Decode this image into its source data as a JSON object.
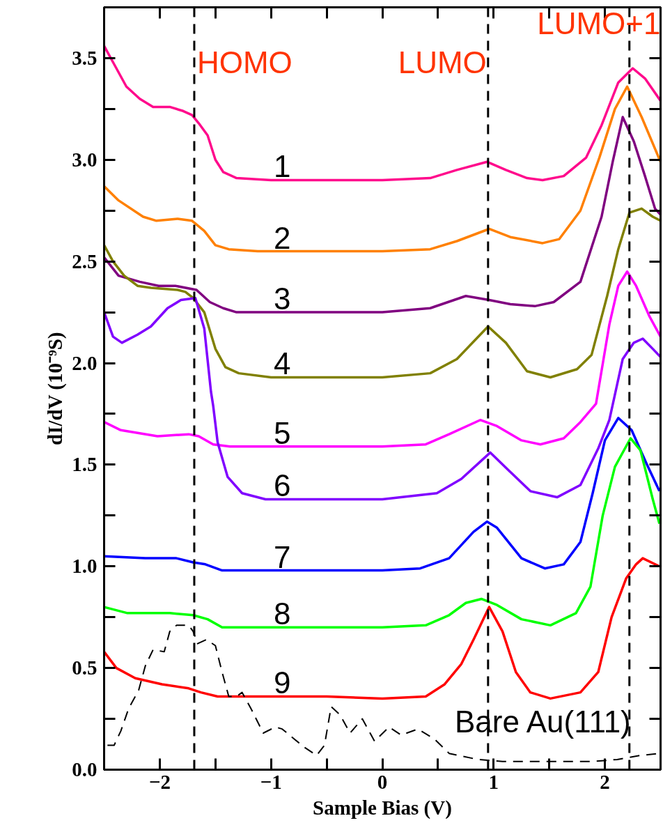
{
  "chart_data": {
    "type": "line",
    "xlabel": "Sample Bias (V)",
    "ylabel": "dI/dV (10⁻⁹S)",
    "xlim": [
      -2.5,
      2.5
    ],
    "ylim": [
      0,
      3.75
    ],
    "xticks": [
      -2,
      {
        "value": -1.5,
        "label": null
      },
      -1,
      {
        "value": -0.5,
        "label": null
      },
      0,
      {
        "value": 0.5,
        "label": null
      },
      1,
      {
        "value": 1.5,
        "label": null
      },
      2
    ],
    "yticks": [
      {
        "value": 0,
        "label": "0.0"
      },
      {
        "value": 0.25,
        "label": null
      },
      0.5,
      {
        "value": 0.75,
        "label": null
      },
      {
        "value": 1,
        "label": "1.0"
      },
      {
        "value": 1.25,
        "label": null
      },
      1.5,
      {
        "value": 1.75,
        "label": null
      },
      {
        "value": 2,
        "label": "2.0"
      },
      {
        "value": 2.25,
        "label": null
      },
      2.5,
      {
        "value": 2.75,
        "label": null
      },
      {
        "value": 3,
        "label": "3.0"
      },
      {
        "value": 3.25,
        "label": null
      },
      3.5
    ],
    "annotations": [
      {
        "text": "Bare Au(111)",
        "x": 2.11,
        "y": 0.05
      }
    ],
    "grid": false,
    "line_style": "solid",
    "ref_lines": [
      {
        "axis": "x",
        "value": -1.69,
        "label": "HOMO",
        "color": "#000000",
        "line_style": "dashed"
      },
      {
        "axis": "x",
        "value": 0.95,
        "label": "LUMO",
        "color": "#000000",
        "line_style": "dashed"
      },
      {
        "axis": "x",
        "value": 2.22,
        "label": "LUMO+1",
        "color": "#000000",
        "line_style": "dashed"
      }
    ],
    "series": [
      {
        "name": "1",
        "color": "#ff0a8c",
        "x": [
          -2.5,
          -2.42,
          -2.3,
          -2.18,
          -2.06,
          -1.91,
          -1.79,
          -1.71,
          -1.65,
          -1.57,
          -1.5,
          -1.43,
          -1.31,
          -1.0,
          -0.5,
          0.0,
          0.43,
          0.67,
          0.94,
          1.11,
          1.3,
          1.44,
          1.63,
          1.83,
          1.97,
          2.12,
          2.25,
          2.36,
          2.5
        ],
        "values": [
          3.56,
          3.48,
          3.36,
          3.3,
          3.26,
          3.26,
          3.24,
          3.22,
          3.18,
          3.12,
          3.0,
          2.94,
          2.91,
          2.9,
          2.9,
          2.9,
          2.91,
          2.95,
          2.99,
          2.95,
          2.91,
          2.9,
          2.92,
          3.01,
          3.17,
          3.38,
          3.45,
          3.4,
          3.29
        ]
      },
      {
        "name": "2",
        "color": "#ff8000",
        "x": [
          -2.5,
          -2.37,
          -2.15,
          -2.03,
          -1.84,
          -1.71,
          -1.6,
          -1.5,
          -1.38,
          -1.12,
          -0.5,
          0.0,
          0.43,
          0.67,
          0.96,
          1.15,
          1.44,
          1.59,
          1.78,
          1.95,
          2.09,
          2.2,
          2.33,
          2.5
        ],
        "values": [
          2.87,
          2.8,
          2.72,
          2.7,
          2.71,
          2.7,
          2.65,
          2.58,
          2.56,
          2.55,
          2.55,
          2.55,
          2.56,
          2.6,
          2.66,
          2.62,
          2.59,
          2.61,
          2.75,
          3.01,
          3.25,
          3.36,
          3.21,
          2.99
        ]
      },
      {
        "name": "3",
        "color": "#800080",
        "x": [
          -2.5,
          -2.37,
          -2.18,
          -2.01,
          -1.86,
          -1.67,
          -1.55,
          -1.43,
          -1.31,
          -0.5,
          0.0,
          0.43,
          0.75,
          0.96,
          1.15,
          1.37,
          1.54,
          1.78,
          1.97,
          2.07,
          2.16,
          2.26,
          2.36,
          2.45,
          2.5
        ],
        "values": [
          2.52,
          2.43,
          2.4,
          2.38,
          2.38,
          2.36,
          2.3,
          2.27,
          2.25,
          2.25,
          2.25,
          2.27,
          2.33,
          2.31,
          2.29,
          2.28,
          2.3,
          2.4,
          2.72,
          2.99,
          3.21,
          3.09,
          2.92,
          2.76,
          2.73
        ]
      },
      {
        "name": "4",
        "color": "#808000",
        "x": [
          -2.5,
          -2.42,
          -2.32,
          -2.2,
          -2.08,
          -1.84,
          -1.77,
          -1.7,
          -1.6,
          -1.5,
          -1.41,
          -1.29,
          -1.0,
          -0.5,
          0.0,
          0.43,
          0.67,
          0.95,
          1.11,
          1.3,
          1.51,
          1.75,
          1.88,
          2.02,
          2.12,
          2.22,
          2.33,
          2.43,
          2.5
        ],
        "values": [
          2.58,
          2.5,
          2.43,
          2.38,
          2.37,
          2.36,
          2.35,
          2.32,
          2.25,
          2.07,
          1.98,
          1.95,
          1.93,
          1.93,
          1.93,
          1.95,
          2.02,
          2.18,
          2.1,
          1.96,
          1.93,
          1.97,
          2.04,
          2.33,
          2.56,
          2.74,
          2.76,
          2.72,
          2.7
        ]
      },
      {
        "name": "5",
        "color": "#ff00ff",
        "x": [
          -2.5,
          -2.35,
          -2.02,
          -1.74,
          -1.65,
          -1.52,
          -1.37,
          -0.5,
          0.0,
          0.39,
          0.6,
          0.88,
          1.03,
          1.25,
          1.42,
          1.63,
          1.78,
          1.92,
          2.04,
          2.12,
          2.2,
          2.28,
          2.4,
          2.5
        ],
        "values": [
          1.71,
          1.67,
          1.64,
          1.65,
          1.64,
          1.6,
          1.59,
          1.59,
          1.59,
          1.6,
          1.65,
          1.72,
          1.69,
          1.62,
          1.6,
          1.63,
          1.71,
          1.8,
          2.19,
          2.38,
          2.45,
          2.38,
          2.23,
          2.13
        ]
      },
      {
        "name": "6",
        "color": "#8000ff",
        "x": [
          -2.5,
          -2.42,
          -2.34,
          -2.2,
          -2.08,
          -1.93,
          -1.81,
          -1.68,
          -1.6,
          -1.54,
          -1.52,
          -1.48,
          -1.39,
          -1.26,
          -1.05,
          -0.5,
          0.0,
          0.49,
          0.71,
          0.97,
          1.14,
          1.33,
          1.57,
          1.78,
          1.94,
          2.04,
          2.16,
          2.26,
          2.34,
          2.43,
          2.5
        ],
        "values": [
          2.25,
          2.13,
          2.1,
          2.14,
          2.18,
          2.27,
          2.31,
          2.32,
          2.17,
          1.86,
          1.79,
          1.61,
          1.44,
          1.36,
          1.33,
          1.33,
          1.33,
          1.36,
          1.43,
          1.56,
          1.47,
          1.37,
          1.34,
          1.4,
          1.58,
          1.72,
          2.02,
          2.1,
          2.12,
          2.07,
          2.03
        ]
      },
      {
        "name": "7",
        "color": "#0000ff",
        "x": [
          -2.5,
          -2.13,
          -1.85,
          -1.7,
          -1.59,
          -1.44,
          -0.5,
          0.0,
          0.34,
          0.6,
          0.82,
          0.94,
          1.03,
          1.25,
          1.46,
          1.63,
          1.78,
          1.89,
          2.0,
          2.12,
          2.24,
          2.37,
          2.49
        ],
        "values": [
          1.05,
          1.04,
          1.04,
          1.02,
          1.01,
          0.98,
          0.98,
          0.98,
          0.99,
          1.04,
          1.17,
          1.22,
          1.19,
          1.04,
          0.99,
          1.01,
          1.12,
          1.36,
          1.62,
          1.73,
          1.67,
          1.51,
          1.37
        ]
      },
      {
        "name": "8",
        "color": "#00ff00",
        "x": [
          -2.5,
          -2.29,
          -1.91,
          -1.7,
          -1.57,
          -1.44,
          -0.5,
          0.0,
          0.39,
          0.6,
          0.75,
          0.89,
          1.03,
          1.25,
          1.51,
          1.74,
          1.87,
          1.98,
          2.09,
          2.23,
          2.32,
          2.43,
          2.49
        ],
        "values": [
          0.8,
          0.77,
          0.77,
          0.76,
          0.74,
          0.7,
          0.7,
          0.7,
          0.71,
          0.76,
          0.82,
          0.84,
          0.81,
          0.74,
          0.71,
          0.77,
          0.9,
          1.25,
          1.49,
          1.63,
          1.57,
          1.33,
          1.21
        ]
      },
      {
        "name": "9",
        "color": "#ff0000",
        "x": [
          -2.5,
          -2.39,
          -2.22,
          -1.98,
          -1.74,
          -1.63,
          -1.48,
          -0.5,
          0.0,
          0.39,
          0.56,
          0.71,
          0.82,
          0.96,
          1.08,
          1.2,
          1.33,
          1.51,
          1.78,
          1.94,
          2.06,
          2.19,
          2.28,
          2.34,
          2.49
        ],
        "values": [
          0.58,
          0.5,
          0.45,
          0.42,
          0.4,
          0.38,
          0.36,
          0.36,
          0.35,
          0.36,
          0.42,
          0.52,
          0.64,
          0.8,
          0.68,
          0.48,
          0.38,
          0.35,
          0.38,
          0.48,
          0.75,
          0.94,
          1.01,
          1.04,
          1.0
        ]
      },
      {
        "color": "#000000",
        "line_style": "dashed",
        "x": [
          -2.47,
          -2.41,
          -2.35,
          -2.28,
          -2.19,
          -2.13,
          -2.06,
          -1.96,
          -1.91,
          -1.85,
          -1.74,
          -1.7,
          -1.66,
          -1.58,
          -1.5,
          -1.44,
          -1.38,
          -1.31,
          -1.26,
          -1.18,
          -1.07,
          -0.96,
          -0.9,
          -0.79,
          -0.7,
          -0.59,
          -0.52,
          -0.46,
          -0.38,
          -0.29,
          -0.18,
          -0.07,
          0.06,
          0.17,
          0.32,
          0.47,
          0.6,
          0.86,
          1.08,
          1.46,
          1.89,
          2.11,
          2.32,
          2.49
        ],
        "values": [
          0.12,
          0.12,
          0.19,
          0.3,
          0.39,
          0.51,
          0.59,
          0.58,
          0.68,
          0.71,
          0.71,
          0.68,
          0.62,
          0.64,
          0.61,
          0.48,
          0.36,
          0.36,
          0.38,
          0.3,
          0.18,
          0.21,
          0.2,
          0.15,
          0.11,
          0.07,
          0.12,
          0.31,
          0.27,
          0.18,
          0.25,
          0.14,
          0.21,
          0.17,
          0.2,
          0.15,
          0.08,
          0.05,
          0.04,
          0.04,
          0.04,
          0.05,
          0.07,
          0.08
        ]
      }
    ]
  }
}
